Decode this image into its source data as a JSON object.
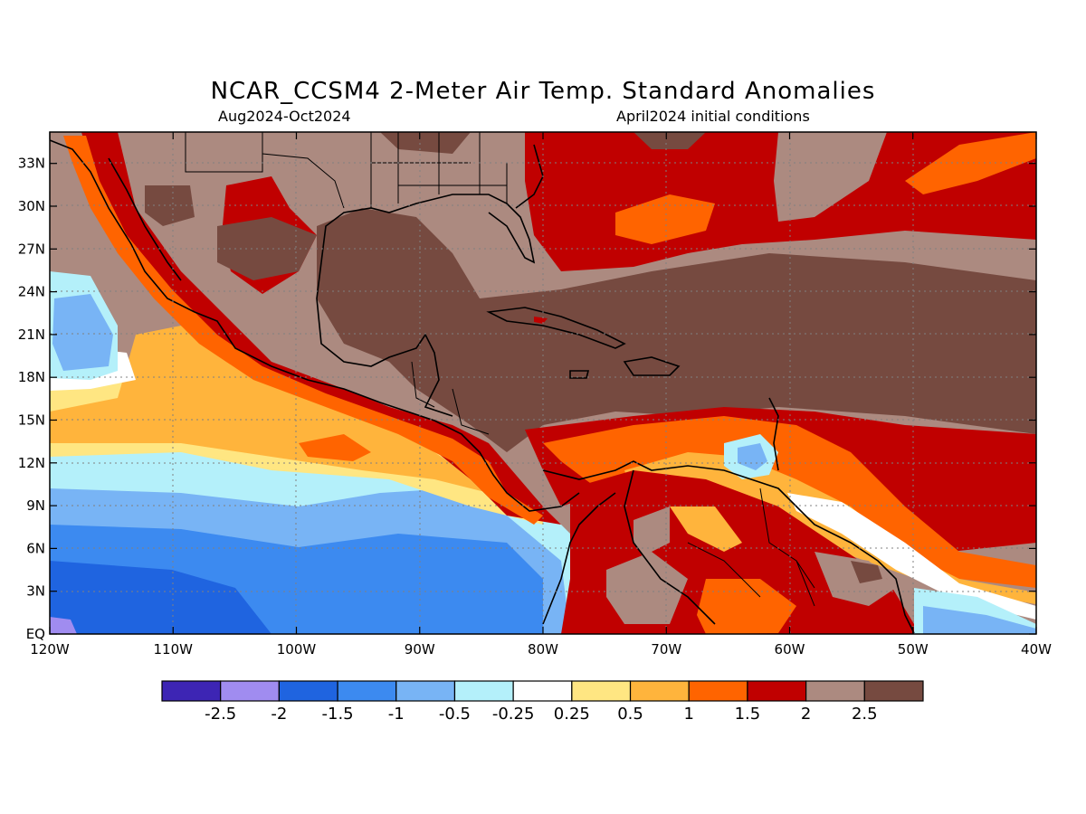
{
  "title": "NCAR_CCSM4 2-Meter Air Temp. Standard Anomalies",
  "period": "Aug2024-Oct2024",
  "initial_conditions": "April2024 initial conditions",
  "axes": {
    "lon_labels": [
      "120W",
      "110W",
      "100W",
      "90W",
      "80W",
      "70W",
      "60W",
      "50W",
      "40W"
    ],
    "lat_labels": [
      "EQ",
      "3N",
      "6N",
      "9N",
      "12N",
      "15N",
      "18N",
      "21N",
      "24N",
      "27N",
      "30N",
      "33N"
    ]
  },
  "colorbar": {
    "labels": [
      "-2.5",
      "-2",
      "-1.5",
      "-1",
      "-0.5",
      "-0.25",
      "0.25",
      "0.5",
      "1",
      "1.5",
      "2",
      "2.5"
    ],
    "colors": [
      "#3d25b4",
      "#a08cf0",
      "#1f64e0",
      "#3c8af0",
      "#78b4f5",
      "#b4f0fa",
      "#ffffff",
      "#ffe682",
      "#ffb43c",
      "#ff6400",
      "#c00000",
      "#ac8a80",
      "#764a40"
    ]
  }
}
